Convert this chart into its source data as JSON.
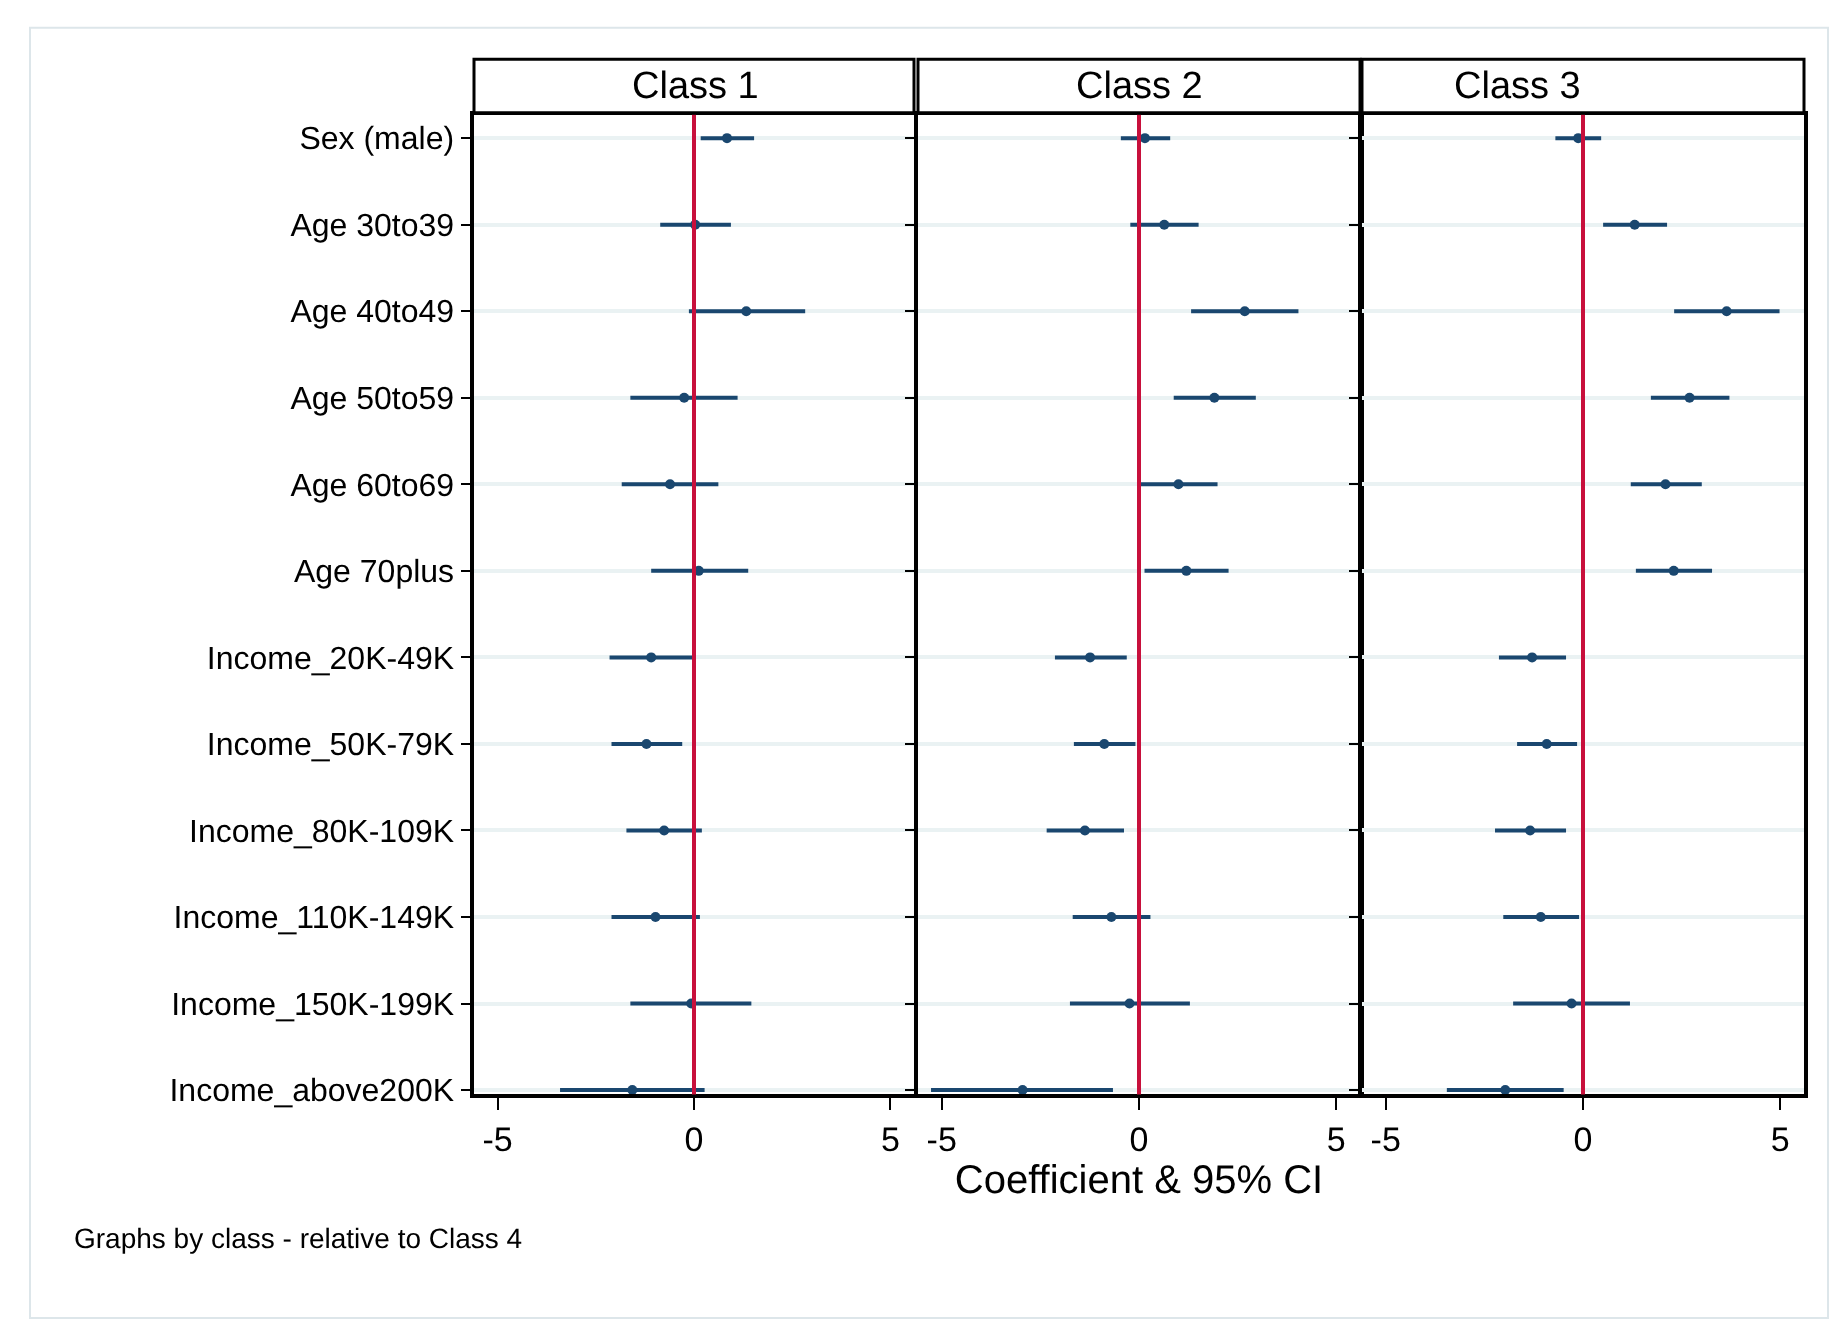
{
  "chart_data": [
    {
      "type": "scatter",
      "orientation": "horizontal",
      "title": "Class 1",
      "categories": [
        "Sex (male)",
        "Age 30to39",
        "Age 40to49",
        "Age 50to59",
        "Age 60to69",
        "Age 70plus",
        "Income_20K-49K",
        "Income_50K-79K",
        "Income_80K-109K",
        "Income_110K-149K",
        "Income_150K-199K",
        "Income_above200K"
      ],
      "series": [
        {
          "color": "#1a476f",
          "values": [
            0.84,
            0.03,
            1.33,
            -0.25,
            -0.61,
            0.12,
            -1.09,
            -1.21,
            -0.76,
            -0.98,
            -0.07,
            -1.57
          ],
          "errors": [
            [
              0.17,
              1.53
            ],
            [
              -0.86,
              0.94
            ],
            [
              -0.13,
              2.83
            ],
            [
              -1.62,
              1.11
            ],
            [
              -1.84,
              0.62
            ],
            [
              -1.09,
              1.38
            ],
            [
              -2.15,
              -0.03
            ],
            [
              -2.1,
              -0.3
            ],
            [
              -1.72,
              0.2
            ],
            [
              -2.1,
              0.15
            ],
            [
              -1.62,
              1.46
            ],
            [
              -3.41,
              0.27
            ]
          ]
        }
      ],
      "xlim": [
        -5.6,
        5.6
      ],
      "xticks": [
        -5,
        0,
        5
      ],
      "ref_lines": [
        {
          "axis": "x",
          "value": 0,
          "color": "#c8103c"
        }
      ],
      "grid": "y",
      "marker": "circle",
      "annotations": [
        "Graphs by class - relative to Class 4"
      ]
    },
    {
      "type": "scatter",
      "orientation": "horizontal",
      "title": "Class 2",
      "xlabel": "Coefficient & 95% CI",
      "series": [
        {
          "color": "#1a476f",
          "values": [
            0.15,
            0.64,
            2.68,
            1.91,
            1.0,
            1.2,
            -1.24,
            -0.88,
            -1.37,
            -0.7,
            -0.24,
            -2.95
          ],
          "errors": [
            [
              -0.46,
              0.79
            ],
            [
              -0.22,
              1.51
            ],
            [
              1.32,
              4.04
            ],
            [
              0.88,
              2.96
            ],
            [
              0.03,
              1.99
            ],
            [
              0.14,
              2.27
            ],
            [
              -2.13,
              -0.31
            ],
            [
              -1.65,
              -0.09
            ],
            [
              -2.34,
              -0.38
            ],
            [
              -1.68,
              0.29
            ],
            [
              -1.75,
              1.29
            ],
            [
              -5.27,
              -0.66
            ]
          ]
        }
      ],
      "xlim": [
        -5.6,
        5.6
      ],
      "xticks": [
        -5,
        0,
        5
      ],
      "ref_lines": [
        {
          "axis": "x",
          "value": 0,
          "color": "#c8103c"
        }
      ],
      "grid": "y",
      "marker": "circle",
      "tick_labels": "x"
    },
    {
      "type": "scatter",
      "orientation": "horizontal",
      "title": "Class 3",
      "series": [
        {
          "color": "#1a476f",
          "values": [
            -0.12,
            1.31,
            3.64,
            2.7,
            2.09,
            2.3,
            -1.29,
            -0.92,
            -1.34,
            -1.07,
            -0.29,
            -1.97
          ],
          "errors": [
            [
              -0.7,
              0.46
            ],
            [
              0.51,
              2.13
            ],
            [
              2.31,
              4.98
            ],
            [
              1.72,
              3.71
            ],
            [
              1.21,
              3.01
            ],
            [
              1.34,
              3.27
            ],
            [
              -2.13,
              -0.43
            ],
            [
              -1.67,
              -0.15
            ],
            [
              -2.23,
              -0.43
            ],
            [
              -2.02,
              -0.1
            ],
            [
              -1.77,
              1.19
            ],
            [
              -3.45,
              -0.49
            ]
          ]
        }
      ],
      "xlim": [
        -5.6,
        5.6
      ],
      "xticks": [
        -5,
        0,
        5
      ],
      "ref_lines": [
        {
          "axis": "x",
          "value": 0,
          "color": "#c8103c"
        }
      ],
      "grid": "y",
      "marker": "circle",
      "tick_labels": "x"
    }
  ]
}
